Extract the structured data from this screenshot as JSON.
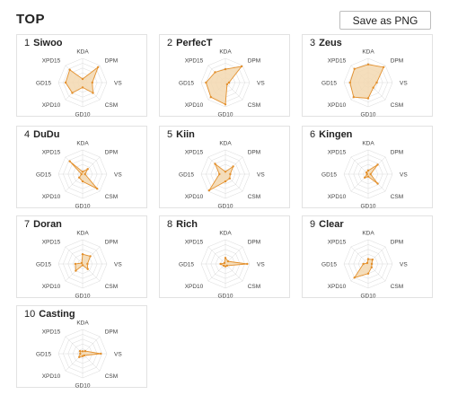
{
  "header": {
    "title": "TOP",
    "save_button_label": "Save as PNG"
  },
  "axes": [
    "KDA",
    "DPM",
    "VS",
    "CSM",
    "GD10",
    "XPD10",
    "GD15",
    "XPD15"
  ],
  "colors": {
    "fill": "#f3d8b0",
    "stroke": "#e3902d",
    "grid": "#d9d9d9"
  },
  "players": [
    {
      "rank": "1",
      "name": "Siwoo",
      "values": [
        0.15,
        0.9,
        0.4,
        0.6,
        0.2,
        0.6,
        0.7,
        0.75
      ]
    },
    {
      "rank": "2",
      "name": "PerfecT",
      "values": [
        0.55,
        0.95,
        0.15,
        0.1,
        0.9,
        0.85,
        0.8,
        0.6
      ]
    },
    {
      "rank": "3",
      "name": "Zeus",
      "values": [
        0.75,
        0.9,
        0.35,
        0.3,
        0.65,
        0.85,
        0.75,
        0.8
      ]
    },
    {
      "rank": "4",
      "name": "DuDu",
      "values": [
        0.1,
        0.3,
        0.1,
        0.85,
        0.3,
        0.2,
        0.05,
        0.75
      ]
    },
    {
      "rank": "5",
      "name": "Kiin",
      "values": [
        0.1,
        0.45,
        0.2,
        0.25,
        0.3,
        0.95,
        0.25,
        0.6
      ]
    },
    {
      "rank": "6",
      "name": "Kingen",
      "values": [
        0.15,
        0.55,
        0.1,
        0.55,
        0.1,
        0.2,
        0.05,
        0.1
      ]
    },
    {
      "rank": "7",
      "name": "Doran",
      "values": [
        0.4,
        0.45,
        0.2,
        0.3,
        0.05,
        0.4,
        0.3,
        0.05
      ]
    },
    {
      "rank": "8",
      "name": "Rich",
      "values": [
        0.25,
        0.15,
        0.9,
        0.1,
        0.1,
        0.1,
        0.2,
        0.05
      ]
    },
    {
      "rank": "9",
      "name": "Clear",
      "values": [
        0.2,
        0.25,
        0.15,
        0.2,
        0.4,
        0.8,
        0.2,
        0.05
      ]
    },
    {
      "rank": "10",
      "name": "Casting",
      "values": [
        0.1,
        0.15,
        0.75,
        0.1,
        0.1,
        0.2,
        0.1,
        0.15
      ]
    }
  ]
}
